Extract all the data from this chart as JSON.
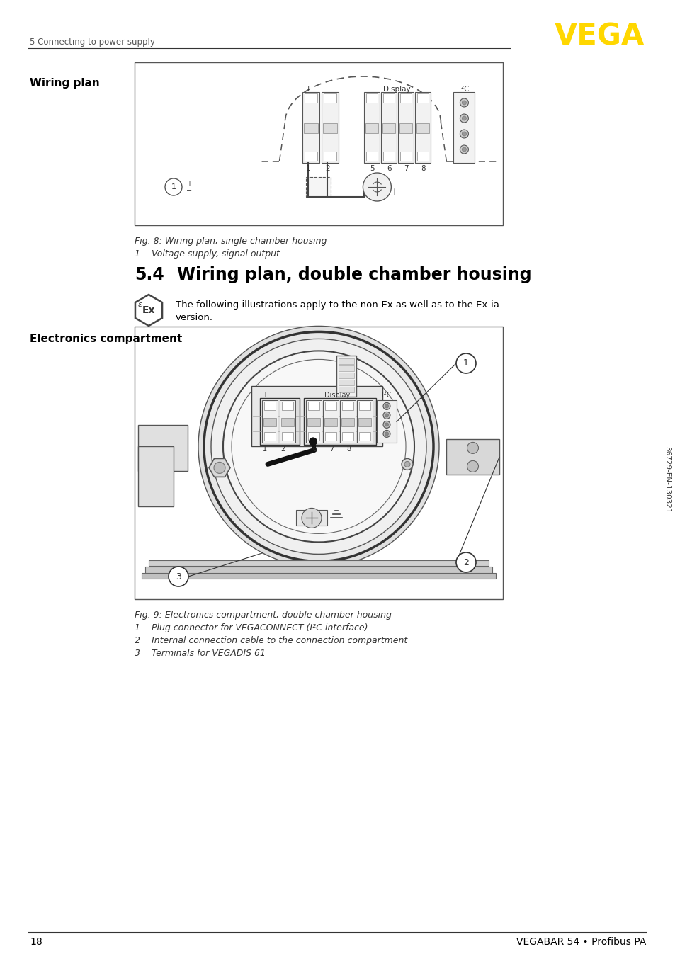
{
  "page_number": "18",
  "footer_text": "VEGABAR 54 • Profibus PA",
  "header_section": "5 Connecting to power supply",
  "vega_logo_color": "#FFD700",
  "wiring_plan_label": "Wiring plan",
  "fig8_caption": "Fig. 8: Wiring plan, single chamber housing",
  "fig8_note1": "1    Voltage supply, signal output",
  "section_number": "5.4",
  "section_title": "Wiring plan, double chamber housing",
  "section_text_line1": "The following illustrations apply to the non-Ex as well as to the Ex-ia",
  "section_text_line2": "version.",
  "electronics_label": "Electronics compartment",
  "fig9_caption": "Fig. 9: Electronics compartment, double chamber housing",
  "fig9_note1": "1    Plug connector for VEGACONNECT (I²C interface)",
  "fig9_note2": "2    Internal connection cable to the connection compartment",
  "fig9_note3": "3    Terminals for VEGADIS 61",
  "sidebar_text": "36729-EN-130321",
  "bg_color": "#ffffff",
  "text_color": "#000000",
  "line_color": "#333333",
  "diagram_line": "#444444",
  "diagram_fill": "#f8f8f8",
  "terminal_fill": "#e8e8e8",
  "dark_fill": "#888888"
}
